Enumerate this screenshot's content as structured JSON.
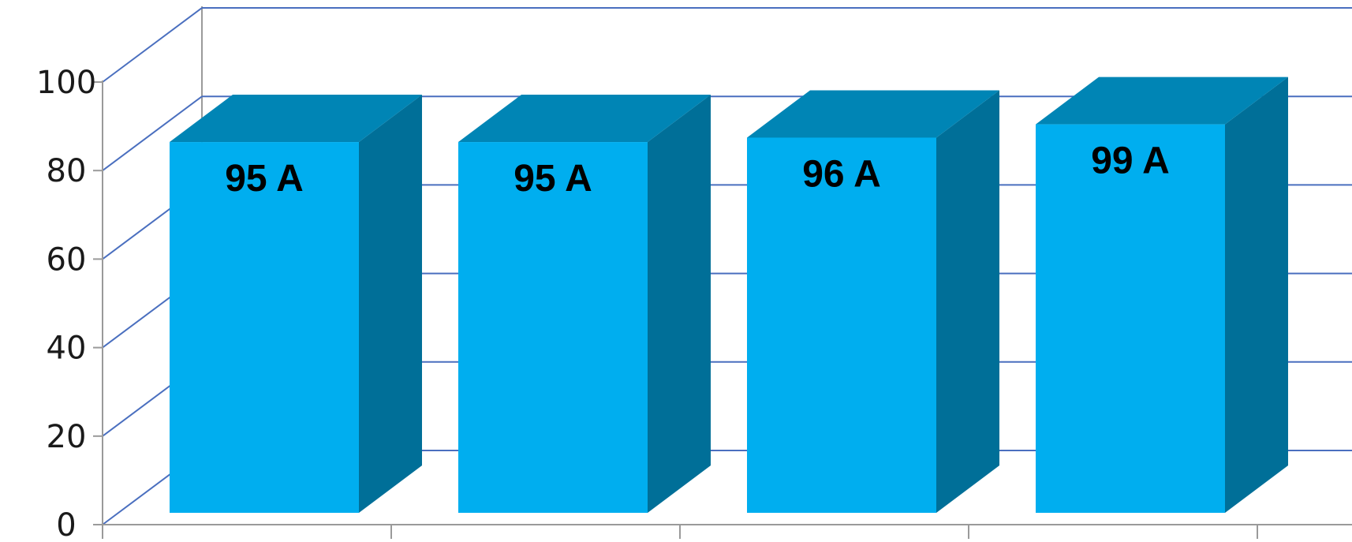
{
  "chart_data": {
    "type": "bar",
    "style": "3d-column",
    "categories": [
      "",
      "",
      "",
      ""
    ],
    "values": [
      95,
      95,
      96,
      99
    ],
    "data_labels": [
      "95 A",
      "95 A",
      "96 A",
      "99 A"
    ],
    "y_ticks": [
      "0",
      "20",
      "40",
      "60",
      "80",
      "100"
    ],
    "ylim": [
      0,
      100
    ],
    "grid": true,
    "legend": "none",
    "colors": {
      "bar_front": "#00aeef",
      "bar_top": "#0085b5",
      "bar_side": "#006f98",
      "gridline": "#4a6fbf",
      "axis": "#9a9a9a"
    }
  }
}
